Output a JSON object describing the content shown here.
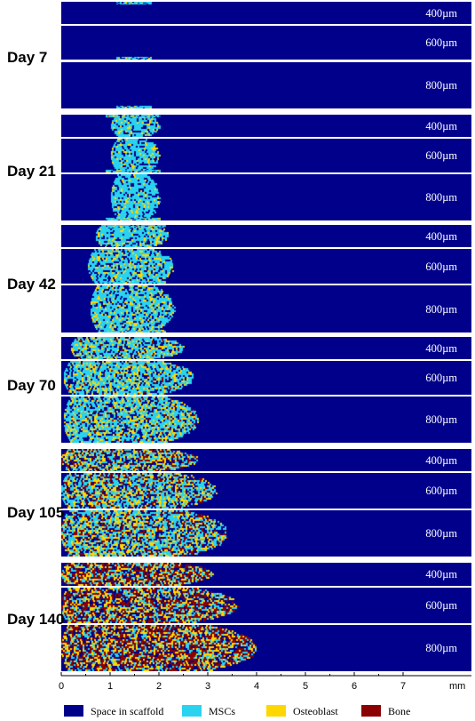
{
  "colors": {
    "space": "#00008b",
    "mscs": "#29d3f0",
    "osteoblast": "#ffd700",
    "bone": "#8b0000"
  },
  "legend": {
    "space": "Space in scaffold",
    "mscs": "MSCs",
    "osteoblast": "Osteoblast",
    "bone": "Bone"
  },
  "axis": {
    "unit": "mm",
    "ticks": [
      "0",
      "1",
      "2",
      "3",
      "4",
      "5",
      "6",
      "7"
    ]
  },
  "days": [
    {
      "label": "Day 7",
      "panels": [
        {
          "thickness": "400µm",
          "front_mm": [
            0.0,
            0.0,
            0.0
          ],
          "mix": [
            1.0,
            0.0,
            0.0
          ]
        },
        {
          "thickness": "600µm",
          "front_mm": [
            0.0,
            0.0,
            0.0
          ],
          "mix": [
            1.0,
            0.0,
            0.0
          ]
        },
        {
          "thickness": "800µm",
          "front_mm": [
            0.0,
            0.0,
            0.0
          ],
          "mix": [
            1.0,
            0.0,
            0.0
          ]
        }
      ]
    },
    {
      "label": "Day 21",
      "panels": [
        {
          "thickness": "400µm",
          "front_mm": [
            1.0,
            1.1,
            2.0
          ],
          "mix": [
            0.85,
            0.15,
            0.0
          ]
        },
        {
          "thickness": "600µm",
          "front_mm": [
            1.0,
            1.1,
            2.0
          ],
          "mix": [
            0.85,
            0.15,
            0.0
          ]
        },
        {
          "thickness": "800µm",
          "front_mm": [
            1.0,
            1.1,
            2.0
          ],
          "mix": [
            0.85,
            0.15,
            0.0
          ]
        }
      ]
    },
    {
      "label": "Day 42",
      "panels": [
        {
          "thickness": "400µm",
          "front_mm": [
            0.7,
            0.7,
            2.2
          ],
          "mix": [
            0.8,
            0.2,
            0.0
          ]
        },
        {
          "thickness": "600µm",
          "front_mm": [
            0.55,
            0.55,
            2.3
          ],
          "mix": [
            0.8,
            0.2,
            0.0
          ]
        },
        {
          "thickness": "800µm",
          "front_mm": [
            0.6,
            0.6,
            2.3
          ],
          "mix": [
            0.8,
            0.2,
            0.0
          ]
        }
      ]
    },
    {
      "label": "Day 70",
      "panels": [
        {
          "thickness": "400µm",
          "front_mm": [
            0.2,
            0.2,
            2.5
          ],
          "mix": [
            0.7,
            0.25,
            0.05
          ]
        },
        {
          "thickness": "600µm",
          "front_mm": [
            0.05,
            0.05,
            2.7
          ],
          "mix": [
            0.7,
            0.25,
            0.05
          ]
        },
        {
          "thickness": "800µm",
          "front_mm": [
            0.05,
            0.05,
            2.8
          ],
          "mix": [
            0.7,
            0.25,
            0.05
          ]
        }
      ]
    },
    {
      "label": "Day 105",
      "panels": [
        {
          "thickness": "400µm",
          "front_mm": [
            0.0,
            0.0,
            2.8
          ],
          "mix": [
            0.45,
            0.3,
            0.25
          ]
        },
        {
          "thickness": "600µm",
          "front_mm": [
            0.0,
            0.0,
            3.2
          ],
          "mix": [
            0.5,
            0.3,
            0.2
          ]
        },
        {
          "thickness": "800µm",
          "front_mm": [
            0.0,
            0.0,
            3.4
          ],
          "mix": [
            0.5,
            0.3,
            0.2
          ]
        }
      ]
    },
    {
      "label": "Day 140",
      "panels": [
        {
          "thickness": "400µm",
          "front_mm": [
            0.0,
            0.0,
            3.1
          ],
          "mix": [
            0.3,
            0.3,
            0.4
          ]
        },
        {
          "thickness": "600µm",
          "front_mm": [
            0.0,
            0.0,
            3.6
          ],
          "mix": [
            0.3,
            0.3,
            0.4
          ]
        },
        {
          "thickness": "800µm",
          "front_mm": [
            0.0,
            0.0,
            4.0
          ],
          "mix": [
            0.25,
            0.3,
            0.45
          ]
        }
      ]
    }
  ]
}
